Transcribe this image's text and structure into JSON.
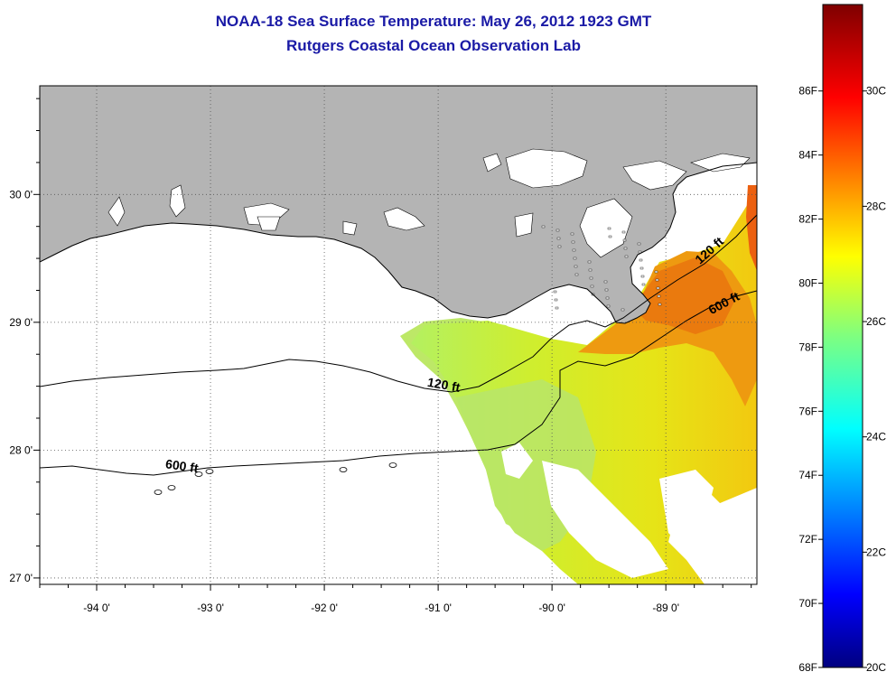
{
  "title": {
    "line1": "NOAA-18 Sea Surface Temperature:  May 26, 2012 1923 GMT",
    "line2": "Rutgers Coastal Ocean Observation Lab"
  },
  "map": {
    "lon_range": [
      -94.5,
      -88.2
    ],
    "lat_range": [
      26.95,
      30.85
    ],
    "lon_ticks": [
      {
        "value": -94,
        "label": "-94 0'"
      },
      {
        "value": -93,
        "label": "-93 0'"
      },
      {
        "value": -92,
        "label": "-92 0'"
      },
      {
        "value": -91,
        "label": "-91 0'"
      },
      {
        "value": -90,
        "label": "-90 0'"
      },
      {
        "value": -89,
        "label": "-89 0'"
      }
    ],
    "lat_ticks": [
      {
        "value": 30,
        "label": "30 0'"
      },
      {
        "value": 29,
        "label": "29 0'"
      },
      {
        "value": 28,
        "label": "28 0'"
      },
      {
        "value": 27,
        "label": "27 0'"
      }
    ],
    "contours": [
      {
        "label": "120 ft"
      },
      {
        "label": "600 ft"
      }
    ],
    "contour_labels": [
      {
        "text": "120 ft",
        "lon": -91.1,
        "lat": 28.5,
        "angle": 10
      },
      {
        "text": "600 ft",
        "lon": -93.4,
        "lat": 27.86,
        "angle": 8
      },
      {
        "text": "120 ft",
        "lon": -88.7,
        "lat": 29.45,
        "angle": -42
      },
      {
        "text": "600 ft",
        "lon": -88.6,
        "lat": 29.06,
        "angle": -28
      }
    ],
    "land_color": "#b4b4b4",
    "grid": true
  },
  "colorbar": {
    "fahrenheit_labels": [
      "86F",
      "84F",
      "82F",
      "80F",
      "78F",
      "76F",
      "74F",
      "72F",
      "70F",
      "68F"
    ],
    "celsius_labels": [
      "30C",
      "28C",
      "26C",
      "24C",
      "22C",
      "20C"
    ],
    "celsius_range": [
      20,
      31.5
    ],
    "colormap": "jet"
  }
}
